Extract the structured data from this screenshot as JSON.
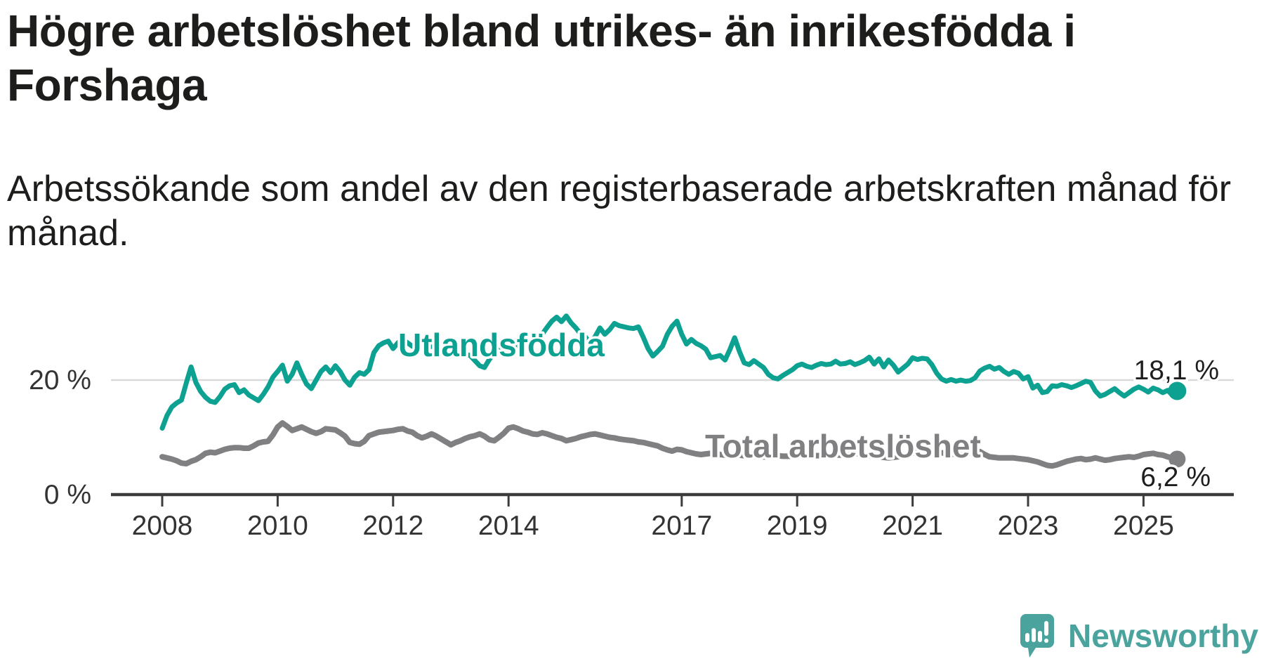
{
  "title": {
    "lines": [
      "Högre arbetslöshet bland utrikes- än inrikesfödda i",
      "Forshaga"
    ]
  },
  "subtitle": {
    "lines": [
      "Arbetssökande som andel av den registerbaserade arbetskraften månad för",
      "månad."
    ]
  },
  "colors": {
    "foreign_born_line": "#0da192",
    "total_line": "#808083",
    "axis": "#3c3c3c",
    "axis_label": "#333333",
    "annotation": "#1e1e1e",
    "gridline": "#d9d9d9",
    "background": "#ffffff",
    "logo_teal": "#4ba39d"
  },
  "chart_data": {
    "type": "line",
    "title": "Högre arbetslöshet bland utrikes- än inrikesfödda i Forshaga",
    "subtitle": "Arbetssökande som andel av den registerbaserade arbetskraften månad för månad.",
    "xlabel": "",
    "ylabel": "",
    "x_range_years": [
      2007.1,
      2026.6
    ],
    "ylim": [
      0,
      39
    ],
    "grid": "horizontal-20-only",
    "legend_position": "inline-labels",
    "x_ticks": [
      {
        "value": 2008,
        "label": "2008"
      },
      {
        "value": 2010,
        "label": "2010"
      },
      {
        "value": 2012,
        "label": "2012"
      },
      {
        "value": 2014,
        "label": "2014"
      },
      {
        "value": 2017,
        "label": "2017"
      },
      {
        "value": 2019,
        "label": "2019"
      },
      {
        "value": 2021,
        "label": "2021"
      },
      {
        "value": 2023,
        "label": "2023"
      },
      {
        "value": 2025,
        "label": "2025"
      }
    ],
    "y_ticks": [
      {
        "value": 0,
        "label": "0 %"
      },
      {
        "value": 20,
        "label": "20 %"
      }
    ],
    "gridlines_at": [
      20
    ],
    "series": [
      {
        "name": "Utlandsfödda",
        "color": "#0da192",
        "start_year": 2008.0,
        "interval_months": 1,
        "end_label": "18,1 %",
        "end_value": 18.1,
        "values": [
          11.6,
          13.8,
          15.3,
          16.0,
          16.5,
          19.5,
          22.3,
          19.6,
          18.0,
          17.0,
          16.3,
          16.1,
          17.1,
          18.4,
          19.0,
          19.2,
          17.8,
          18.3,
          17.4,
          16.9,
          16.4,
          17.5,
          18.8,
          20.5,
          21.5,
          22.6,
          19.8,
          21.0,
          23.0,
          21.0,
          19.3,
          18.5,
          20.0,
          21.5,
          22.3,
          21.3,
          22.5,
          21.5,
          20.0,
          19.1,
          20.5,
          21.3,
          21.0,
          21.8,
          24.8,
          26.0,
          26.5,
          26.8,
          25.5,
          26.5,
          27.1,
          26.5,
          25.9,
          26.3,
          26.6,
          25.6,
          25.9,
          26.2,
          25.4,
          25.1,
          26.0,
          25.5,
          24.9,
          24.5,
          24.3,
          23.4,
          22.5,
          22.2,
          23.6,
          24.7,
          25.3,
          25.1,
          24.9,
          25.6,
          26.2,
          26.7,
          26.4,
          26.2,
          27.0,
          28.0,
          29.2,
          30.3,
          31.0,
          30.2,
          31.2,
          30.0,
          29.1,
          28.0,
          27.5,
          26.4,
          27.6,
          29.1,
          28.0,
          28.8,
          29.9,
          29.5,
          29.3,
          29.1,
          29.0,
          29.3,
          27.5,
          25.5,
          24.2,
          25.0,
          25.9,
          28.0,
          29.4,
          30.3,
          28.0,
          26.3,
          27.1,
          26.4,
          26.0,
          25.4,
          23.9,
          24.1,
          24.3,
          23.5,
          25.3,
          27.4,
          25.0,
          23.0,
          22.7,
          23.4,
          22.8,
          22.2,
          21.0,
          20.4,
          20.2,
          20.8,
          21.3,
          21.8,
          22.5,
          22.8,
          22.4,
          22.2,
          22.6,
          22.9,
          22.7,
          22.8,
          23.3,
          22.8,
          22.9,
          23.2,
          22.7,
          23.0,
          23.4,
          24.0,
          22.8,
          23.7,
          22.3,
          23.5,
          22.6,
          21.4,
          22.1,
          22.8,
          23.9,
          23.6,
          23.8,
          23.7,
          22.7,
          21.2,
          20.2,
          19.8,
          20.1,
          19.8,
          20.0,
          19.8,
          19.9,
          20.4,
          21.6,
          22.1,
          22.4,
          21.9,
          22.2,
          21.5,
          21.0,
          21.5,
          21.2,
          20.2,
          20.6,
          18.6,
          19.1,
          17.8,
          18.0,
          19.0,
          18.9,
          19.2,
          19.0,
          18.7,
          19.0,
          19.4,
          19.8,
          19.6,
          18.1,
          17.2,
          17.5,
          18.0,
          18.5,
          17.8,
          17.2,
          17.8,
          18.4,
          18.8,
          18.4,
          17.9,
          18.6,
          18.3,
          17.8,
          18.2,
          17.4,
          18.1
        ]
      },
      {
        "name": "Total arbetslöshet",
        "color": "#808083",
        "start_year": 2008.0,
        "interval_months": 1,
        "end_label": "6,2 %",
        "end_value": 6.2,
        "values": [
          6.6,
          6.4,
          6.2,
          5.9,
          5.5,
          5.4,
          5.8,
          6.1,
          6.6,
          7.2,
          7.4,
          7.3,
          7.6,
          7.9,
          8.1,
          8.2,
          8.2,
          8.1,
          8.1,
          8.5,
          9.0,
          9.2,
          9.3,
          10.4,
          11.8,
          12.5,
          11.9,
          11.2,
          11.5,
          11.8,
          11.4,
          11.0,
          10.7,
          11.0,
          11.5,
          11.4,
          11.3,
          10.8,
          10.2,
          9.1,
          8.9,
          8.8,
          9.3,
          10.3,
          10.6,
          10.9,
          11.0,
          11.1,
          11.2,
          11.4,
          11.5,
          11.1,
          10.9,
          10.3,
          9.9,
          10.2,
          10.6,
          10.2,
          9.7,
          9.2,
          8.7,
          9.1,
          9.4,
          9.8,
          10.1,
          10.3,
          10.6,
          10.2,
          9.6,
          9.4,
          10.0,
          10.7,
          11.6,
          11.8,
          11.5,
          11.1,
          10.9,
          10.6,
          10.5,
          10.8,
          10.6,
          10.3,
          10.0,
          9.8,
          9.4,
          9.6,
          9.8,
          10.1,
          10.3,
          10.5,
          10.6,
          10.4,
          10.2,
          10.0,
          9.9,
          9.7,
          9.6,
          9.5,
          9.4,
          9.2,
          9.1,
          8.9,
          8.7,
          8.5,
          8.1,
          7.8,
          7.6,
          7.9,
          7.8,
          7.5,
          7.3,
          7.1,
          7.0,
          7.1,
          7.2,
          7.1,
          7.0,
          6.9,
          6.8,
          6.8,
          6.9,
          6.8,
          6.7,
          6.7,
          6.6,
          6.6,
          6.6,
          6.7,
          6.8,
          6.7,
          6.7,
          6.7,
          6.8,
          6.8,
          6.9,
          6.9,
          6.8,
          6.8,
          6.8,
          6.9,
          6.9,
          6.9,
          7.0,
          7.0,
          7.2,
          7.1,
          7.0,
          6.8,
          6.7,
          6.6,
          6.5,
          6.4,
          6.5,
          6.6,
          6.8,
          7.0,
          7.2,
          7.4,
          7.5,
          7.5,
          7.4,
          7.4,
          7.3,
          7.2,
          7.1,
          7.0,
          7.1,
          7.2,
          7.3,
          7.4,
          7.5,
          7.0,
          6.6,
          6.5,
          6.4,
          6.4,
          6.4,
          6.4,
          6.3,
          6.2,
          6.1,
          5.9,
          5.7,
          5.4,
          5.1,
          5.0,
          5.2,
          5.5,
          5.8,
          6.0,
          6.2,
          6.3,
          6.1,
          6.2,
          6.4,
          6.2,
          6.0,
          6.1,
          6.3,
          6.4,
          6.5,
          6.6,
          6.5,
          6.7,
          7.0,
          7.1,
          7.2,
          7.0,
          6.9,
          6.6,
          6.4,
          6.2
        ]
      }
    ]
  },
  "logo": {
    "text": "Newsworthy",
    "icon": "newsworthy-speech-bubble-chart-icon"
  }
}
